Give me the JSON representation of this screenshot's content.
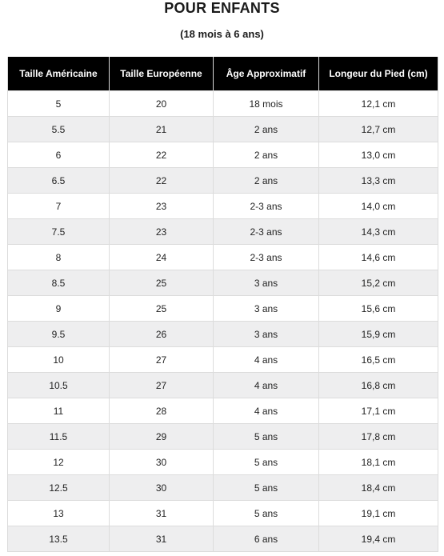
{
  "title": "POUR ENFANTS",
  "subtitle": "(18 mois à 6 ans)",
  "table": {
    "headers": [
      "Taille Américaine",
      "Taille Européenne",
      "Âge Approximatif",
      "Longeur du Pied (cm)"
    ],
    "rows": [
      [
        "5",
        "20",
        "18 mois",
        "12,1 cm"
      ],
      [
        "5.5",
        "21",
        "2 ans",
        "12,7 cm"
      ],
      [
        "6",
        "22",
        "2 ans",
        "13,0 cm"
      ],
      [
        "6.5",
        "22",
        "2 ans",
        "13,3 cm"
      ],
      [
        "7",
        "23",
        "2-3 ans",
        "14,0 cm"
      ],
      [
        "7.5",
        "23",
        "2-3 ans",
        "14,3 cm"
      ],
      [
        "8",
        "24",
        "2-3 ans",
        "14,6 cm"
      ],
      [
        "8.5",
        "25",
        "3 ans",
        "15,2 cm"
      ],
      [
        "9",
        "25",
        "3 ans",
        "15,6 cm"
      ],
      [
        "9.5",
        "26",
        "3 ans",
        "15,9 cm"
      ],
      [
        "10",
        "27",
        "4 ans",
        "16,5 cm"
      ],
      [
        "10.5",
        "27",
        "4 ans",
        "16,8 cm"
      ],
      [
        "11",
        "28",
        "4 ans",
        "17,1 cm"
      ],
      [
        "11.5",
        "29",
        "5 ans",
        "17,8 cm"
      ],
      [
        "12",
        "30",
        "5 ans",
        "18,1 cm"
      ],
      [
        "12.5",
        "30",
        "5 ans",
        "18,4 cm"
      ],
      [
        "13",
        "31",
        "5 ans",
        "19,1 cm"
      ],
      [
        "13.5",
        "31",
        "6 ans",
        "19,4 cm"
      ]
    ]
  },
  "colors": {
    "header_bg": "#000000",
    "header_text": "#ffffff",
    "stripe": "#eeeeef"
  }
}
